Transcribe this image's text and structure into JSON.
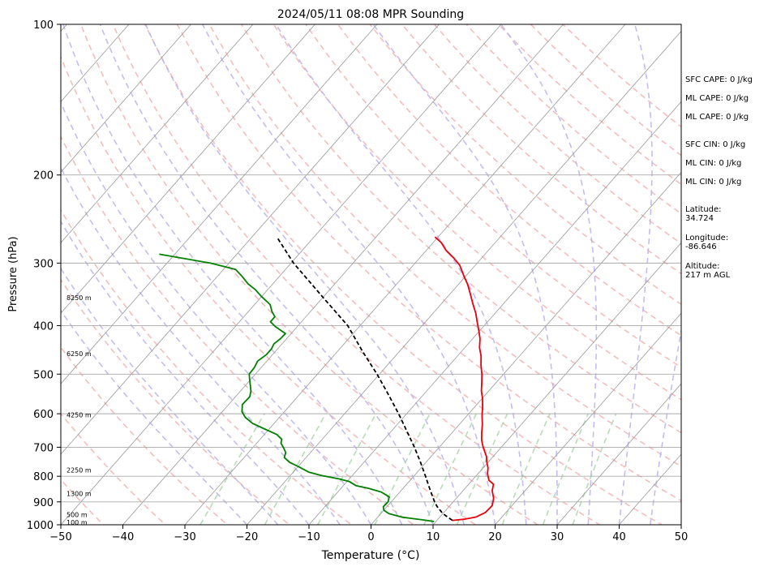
{
  "chart_data": {
    "type": "line",
    "title": "2024/05/11 08:08 MPR Sounding",
    "xlabel": "Temperature (°C)",
    "ylabel": "Pressure (hPa)",
    "xlim": [
      -50,
      50
    ],
    "ylim": [
      1000,
      100
    ],
    "y_scale": "log",
    "skew": "skew-T",
    "grid": true,
    "x_ticks": [
      "−50",
      "−40",
      "−30",
      "−20",
      "−10",
      "0",
      "10",
      "20",
      "30",
      "40",
      "50"
    ],
    "y_ticks": [
      "1000",
      "900",
      "800",
      "700",
      "600",
      "500",
      "400",
      "300",
      "200",
      "100"
    ],
    "height_labels": [
      "8250 m",
      "6250 m",
      "4250 m",
      "2250 m",
      "1300 m",
      "500 m",
      "100 m"
    ],
    "series": [
      {
        "color": "#e8000b",
        "points": [
          [
            12.5,
            980
          ],
          [
            14.2,
            975
          ],
          [
            15.8,
            965
          ],
          [
            16.7,
            945
          ],
          [
            16.8,
            915
          ],
          [
            16.0,
            885
          ],
          [
            14.7,
            855
          ],
          [
            14.0,
            830
          ],
          [
            12.7,
            815
          ],
          [
            11.5,
            790
          ],
          [
            10.8,
            770
          ],
          [
            9.8,
            750
          ],
          [
            8.9,
            730
          ],
          [
            8.0,
            715
          ],
          [
            6.8,
            695
          ],
          [
            5.8,
            677
          ],
          [
            4.8,
            655
          ],
          [
            3.7,
            630
          ],
          [
            2.4,
            605
          ],
          [
            1.2,
            580
          ],
          [
            0.1,
            560
          ],
          [
            -1.2,
            540
          ],
          [
            -2.3,
            520
          ],
          [
            -3.5,
            500
          ],
          [
            -4.9,
            480
          ],
          [
            -6.2,
            460
          ],
          [
            -7.6,
            443
          ],
          [
            -8.8,
            425
          ],
          [
            -10.1,
            410
          ],
          [
            -11.5,
            395
          ],
          [
            -13.1,
            378
          ],
          [
            -14.9,
            362
          ],
          [
            -16.7,
            346
          ],
          [
            -18.5,
            331
          ],
          [
            -20.5,
            317
          ],
          [
            -22.5,
            303
          ],
          [
            -24.5,
            293
          ],
          [
            -26.8,
            283
          ],
          [
            -28.7,
            273
          ],
          [
            -30.5,
            266
          ]
        ]
      },
      {
        "color": "#008000",
        "points": [
          [
            9.7,
            985
          ],
          [
            7.7,
            978
          ],
          [
            4.0,
            966
          ],
          [
            1.3,
            950
          ],
          [
            0.0,
            935
          ],
          [
            -0.6,
            920
          ],
          [
            -0.5,
            900
          ],
          [
            -1.0,
            880
          ],
          [
            -3.0,
            860
          ],
          [
            -5.7,
            845
          ],
          [
            -8.0,
            835
          ],
          [
            -9.6,
            820
          ],
          [
            -11.6,
            810
          ],
          [
            -15.0,
            797
          ],
          [
            -17.5,
            785
          ],
          [
            -20.0,
            765
          ],
          [
            -22.0,
            750
          ],
          [
            -23.5,
            734
          ],
          [
            -24.0,
            717
          ],
          [
            -25.0,
            702
          ],
          [
            -26.1,
            687
          ],
          [
            -26.5,
            675
          ],
          [
            -28.0,
            660
          ],
          [
            -30.5,
            645
          ],
          [
            -33.5,
            627
          ],
          [
            -35.5,
            610
          ],
          [
            -36.8,
            595
          ],
          [
            -37.8,
            575
          ],
          [
            -37.7,
            555
          ],
          [
            -38.3,
            541
          ],
          [
            -39.2,
            527
          ],
          [
            -40.2,
            512
          ],
          [
            -41.0,
            500
          ],
          [
            -41.1,
            485
          ],
          [
            -41.5,
            471
          ],
          [
            -41.0,
            457
          ],
          [
            -41.0,
            445
          ],
          [
            -41.3,
            435
          ],
          [
            -41.0,
            425
          ],
          [
            -40.9,
            415
          ],
          [
            -43.5,
            402
          ],
          [
            -45.0,
            393
          ],
          [
            -45.0,
            384
          ],
          [
            -46.2,
            375
          ],
          [
            -47.5,
            363
          ],
          [
            -50.0,
            350
          ],
          [
            -52.0,
            339
          ],
          [
            -54.0,
            330
          ],
          [
            -55.8,
            320
          ],
          [
            -58.0,
            309
          ],
          [
            -63.0,
            300
          ],
          [
            -72.5,
            288
          ]
        ]
      },
      {
        "color": "#000000",
        "dashed": true,
        "points": [
          [
            12.5,
            980
          ],
          [
            10.0,
            950
          ],
          [
            8.1,
            920
          ],
          [
            7.0,
            900
          ],
          [
            4.5,
            850
          ],
          [
            1.9,
            800
          ],
          [
            -0.9,
            750
          ],
          [
            -4.0,
            700
          ],
          [
            -7.5,
            650
          ],
          [
            -11.3,
            600
          ],
          [
            -15.6,
            550
          ],
          [
            -20.4,
            500
          ],
          [
            -26.0,
            450
          ],
          [
            -32.0,
            400
          ],
          [
            -40.2,
            350
          ],
          [
            -49.6,
            300
          ],
          [
            -56.0,
            266
          ]
        ]
      }
    ],
    "annotations": [
      "SFC CAPE: 0 J/kg",
      "ML CAPE: 0 J/kg",
      "ML CAPE: 0 J/kg",
      "SFC CIN: 0 J/kg",
      "ML CIN: 0 J/kg",
      "ML CIN: 0 J/kg",
      "Latitude:",
      "34.724",
      "Longitude:",
      "-86.646",
      "Altitude:",
      "217 m AGL"
    ],
    "colors": {
      "dry_adiabats": "#f4a6a6",
      "moist_adiabats": "#b9b2f0",
      "mixing_ratio": "#a8d8a8",
      "isotherms": "#999999"
    }
  }
}
